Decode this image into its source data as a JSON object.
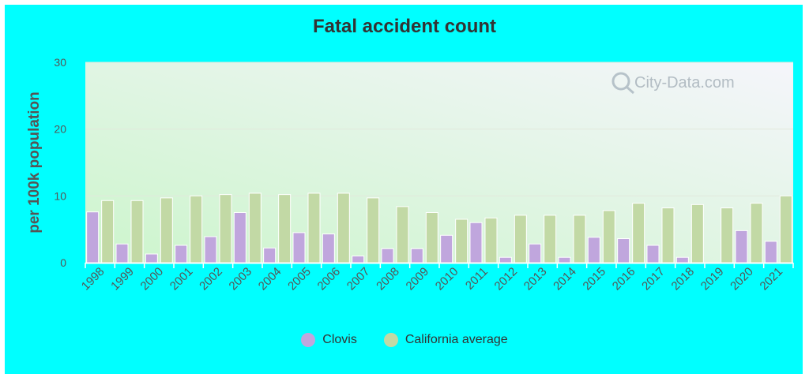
{
  "chart_data": {
    "type": "bar",
    "title": "Fatal accident count",
    "ylabel": "per 100k population",
    "xlabel": "",
    "ylim": [
      0,
      30
    ],
    "yticks": [
      0,
      10,
      20,
      30
    ],
    "categories": [
      "1998",
      "1999",
      "2000",
      "2001",
      "2002",
      "2003",
      "2004",
      "2005",
      "2006",
      "2007",
      "2008",
      "2009",
      "2010",
      "2011",
      "2012",
      "2013",
      "2014",
      "2015",
      "2016",
      "2017",
      "2018",
      "2019",
      "2020",
      "2021"
    ],
    "series": [
      {
        "name": "Clovis",
        "color": "#c0a6dd",
        "values": [
          7.6,
          2.8,
          1.3,
          2.6,
          3.9,
          7.5,
          2.2,
          4.5,
          4.3,
          1.0,
          2.1,
          2.1,
          4.1,
          6.0,
          0.8,
          2.8,
          0.8,
          3.8,
          3.6,
          2.6,
          0.8,
          0.0,
          4.8,
          3.2
        ]
      },
      {
        "name": "California average",
        "color": "#c2d9a5",
        "values": [
          9.3,
          9.3,
          9.7,
          10.0,
          10.2,
          10.4,
          10.2,
          10.4,
          10.4,
          9.7,
          8.4,
          7.5,
          6.5,
          6.7,
          7.1,
          7.1,
          7.1,
          7.8,
          8.9,
          8.2,
          8.7,
          8.2,
          8.9,
          10.0
        ]
      }
    ],
    "grid": true,
    "legend_position": "bottom"
  },
  "watermark": "City-Data.com",
  "colors": {
    "frame_background": "#00ffff",
    "plot_gradient_top": "#f5f5fb",
    "plot_gradient_bottom": "#ccf5cc"
  }
}
